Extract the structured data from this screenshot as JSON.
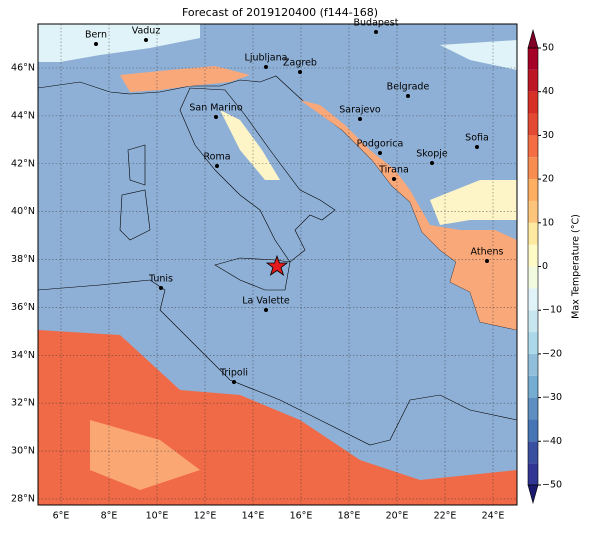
{
  "title": "Forecast of 2019120400 (f144-168)",
  "map": {
    "lat_labels": [
      "46°N",
      "44°N",
      "42°N",
      "40°N",
      "38°N",
      "36°N",
      "34°N",
      "32°N",
      "30°N",
      "28°N"
    ],
    "lon_labels": [
      "6°E",
      "8°E",
      "10°E",
      "12°E",
      "14°E",
      "16°E",
      "18°E",
      "20°E",
      "22°E",
      "24°E"
    ],
    "cities": [
      "Bern",
      "Vaduz",
      "Budapest",
      "Ljubljana",
      "Zagreb",
      "Belgrade",
      "San Marino",
      "Sarajevo",
      "Sofia",
      "Podgorica",
      "Skopje",
      "Roma",
      "Tirana",
      "Athens",
      "Tunis",
      "La Valette",
      "Tripoli"
    ]
  },
  "colorbar": {
    "label": "Max Temperature (°C)",
    "lim": [
      -50,
      50
    ],
    "ticks": [
      {
        "value": -50,
        "label": "−50"
      },
      {
        "value": -40,
        "label": "−40"
      },
      {
        "value": -30,
        "label": "−30"
      },
      {
        "value": -20,
        "label": "−20"
      },
      {
        "value": -10,
        "label": "−10"
      },
      0,
      10,
      20,
      30,
      40,
      50
    ]
  }
}
